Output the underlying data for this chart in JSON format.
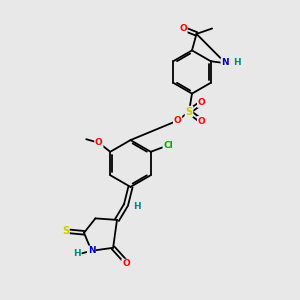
{
  "background_color": "#e8e8e8",
  "bond_color": "#000000",
  "atom_colors": {
    "O": "#ff0000",
    "N": "#0000cc",
    "S": "#cccc00",
    "Cl": "#00aa00",
    "H": "#008888",
    "C": "#000000"
  },
  "figsize": [
    3.0,
    3.0
  ],
  "dpi": 100
}
